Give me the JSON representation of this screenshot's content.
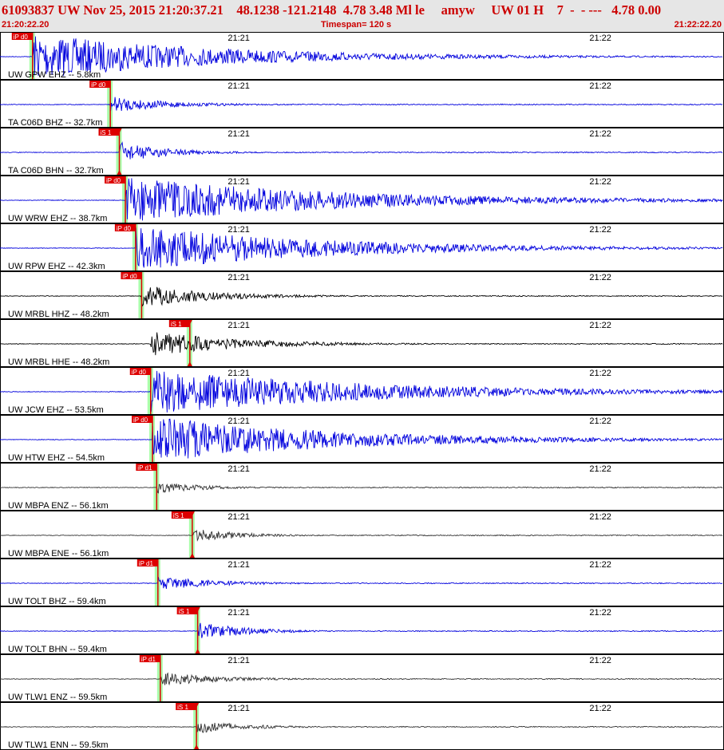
{
  "header": {
    "title": "61093837 UW Nov 25, 2015 21:20:37.21    48.1238 -121.2148  4.78 3.48 Ml le     amyw     UW 01 H    7  -  - ---   4.78 0.00",
    "start_time": "21:20:22.20",
    "timespan": "Timespan= 120 s",
    "end_time": "21:22:22.20"
  },
  "chart_data": {
    "type": "line",
    "x_unit": "s",
    "xlim": [
      0,
      120
    ],
    "time_ticks": [
      {
        "label": "21:21",
        "t": 37.8
      },
      {
        "label": "21:22",
        "t": 97.8
      }
    ],
    "colors": {
      "ehz_broadband": "#0000dd",
      "black_trace": "#000000",
      "gray_trace": "#333333",
      "pick_box": "#dd0000",
      "pick_window": "#aaffaa"
    },
    "series": [
      {
        "name": "UW GPW EHZ -- 5.8km",
        "color": "#0000dd",
        "onset": 5.4,
        "amp": 1.0,
        "decay": 30,
        "p_pick": {
          "label": "iP d0",
          "t": 5.4
        }
      },
      {
        "name": "TA C06D BHZ -- 32.7km",
        "color": "#0000dd",
        "onset": 18.3,
        "amp": 0.35,
        "decay": 10,
        "p_pick": {
          "label": "iP d0",
          "t": 18.3
        }
      },
      {
        "name": "TA C06D BHN -- 32.7km",
        "color": "#0000dd",
        "onset": 19.8,
        "amp": 0.45,
        "decay": 8,
        "s_pick": {
          "label": "iS 1",
          "t": 19.8
        }
      },
      {
        "name": "UW WRW EHZ -- 38.7km",
        "color": "#0000dd",
        "onset": 20.8,
        "amp": 1.0,
        "decay": 35,
        "p_pick": {
          "label": "iP d0",
          "t": 20.8
        }
      },
      {
        "name": "UW RPW EHZ -- 42.3km",
        "color": "#0000dd",
        "onset": 22.5,
        "amp": 1.0,
        "decay": 30,
        "p_pick": {
          "label": "iP d0",
          "t": 22.5
        }
      },
      {
        "name": "UW MRBL HHZ -- 48.2km",
        "color": "#000000",
        "onset": 23.5,
        "amp": 0.5,
        "decay": 12,
        "p_pick": {
          "label": "iP d0",
          "t": 23.5
        }
      },
      {
        "name": "UW MRBL HHE -- 48.2km",
        "color": "#000000",
        "onset": 25.0,
        "amp": 0.55,
        "decay": 15,
        "s_pick": {
          "label": "iS 1",
          "t": 31.5
        }
      },
      {
        "name": "UW JCW EHZ -- 53.5km",
        "color": "#0000dd",
        "onset": 25.0,
        "amp": 1.0,
        "decay": 35,
        "p_pick": {
          "label": "iP d0",
          "t": 25.0
        }
      },
      {
        "name": "UW HTW EHZ -- 54.5km",
        "color": "#0000dd",
        "onset": 25.3,
        "amp": 1.0,
        "decay": 30,
        "p_pick": {
          "label": "iP d0",
          "t": 25.3
        }
      },
      {
        "name": "UW MBPA ENZ -- 56.1km",
        "color": "#333333",
        "onset": 26.0,
        "amp": 0.25,
        "decay": 8,
        "p_pick": {
          "label": "iP d1",
          "t": 26.0
        }
      },
      {
        "name": "UW MBPA ENE -- 56.1km",
        "color": "#333333",
        "onset": 32.0,
        "amp": 0.3,
        "decay": 8,
        "s_pick": {
          "label": "iS 1",
          "t": 31.9
        }
      },
      {
        "name": "UW TOLT BHZ -- 59.4km",
        "color": "#0000dd",
        "onset": 26.2,
        "amp": 0.3,
        "decay": 10,
        "p_pick": {
          "label": "iP d1",
          "t": 26.2
        }
      },
      {
        "name": "UW TOLT BHN -- 59.4km",
        "color": "#0000dd",
        "onset": 33.0,
        "amp": 0.4,
        "decay": 8,
        "s_pick": {
          "label": "iS 1",
          "t": 32.8
        }
      },
      {
        "name": "UW TLW1 ENZ -- 59.5km",
        "color": "#333333",
        "onset": 26.6,
        "amp": 0.3,
        "decay": 10,
        "p_pick": {
          "label": "iP d1",
          "t": 26.6
        }
      },
      {
        "name": "UW TLW1 ENN -- 59.5km",
        "color": "#333333",
        "onset": 32.6,
        "amp": 0.3,
        "decay": 8,
        "s_pick": {
          "label": "iS 1",
          "t": 32.6
        }
      }
    ]
  }
}
